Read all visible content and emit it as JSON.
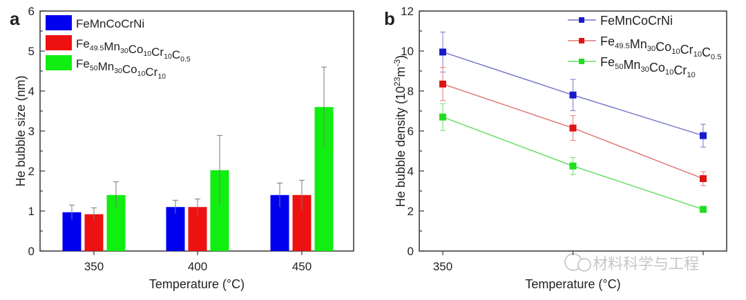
{
  "chart_data": [
    {
      "panel_label": "a",
      "type": "bar",
      "xlabel": "Temperature (°C)",
      "ylabel": "He bubble size (nm)",
      "ylim": [
        0,
        6
      ],
      "yticks": [
        "0",
        "1",
        "2",
        "3",
        "4",
        "5",
        "6"
      ],
      "categories": [
        "350",
        "400",
        "450"
      ],
      "legend_placement": "top-left",
      "series": [
        {
          "name": "FeMnCoCrNi",
          "name_parts": [
            [
              "Fe",
              ""
            ],
            [
              "Mn",
              ""
            ],
            [
              "Co",
              ""
            ],
            [
              "Cr",
              ""
            ],
            [
              "Ni",
              ""
            ]
          ],
          "color": "#0000ee",
          "values": [
            0.97,
            1.1,
            1.4
          ],
          "errors": [
            0.18,
            0.17,
            0.3
          ]
        },
        {
          "name": "Fe49.5Mn30Co10Cr10C0.5",
          "name_parts": [
            [
              "Fe",
              "49.5"
            ],
            [
              "Mn",
              "30"
            ],
            [
              "Co",
              "10"
            ],
            [
              "Cr",
              "10"
            ],
            [
              "C",
              "0.5"
            ]
          ],
          "color": "#ee1111",
          "values": [
            0.92,
            1.1,
            1.4
          ],
          "errors": [
            0.16,
            0.2,
            0.37
          ]
        },
        {
          "name": "Fe50Mn30Co10Cr10",
          "name_parts": [
            [
              "Fe",
              "50"
            ],
            [
              "Mn",
              "30"
            ],
            [
              "Co",
              "10"
            ],
            [
              "Cr",
              "10"
            ]
          ],
          "color": "#11ee11",
          "values": [
            1.4,
            2.02,
            3.6
          ],
          "errors": [
            0.33,
            0.87,
            1.0
          ]
        }
      ]
    },
    {
      "panel_label": "b",
      "type": "line",
      "xlabel": "Temperature (°C)",
      "ylabel": "He bubble density (10",
      "ylabel_sup1": "23",
      "ylabel_mid": "m",
      "ylabel_sup2": "-3",
      "ylabel_end": ")",
      "ylim": [
        0,
        12
      ],
      "yticks": [
        "0",
        "2",
        "4",
        "6",
        "8",
        "10",
        "12"
      ],
      "x": [
        350,
        400,
        450
      ],
      "xtick_labels_visible": [
        "350"
      ],
      "legend_placement": "top-right",
      "series": [
        {
          "name": "FeMnCoCrNi",
          "name_parts": [
            [
              "Fe",
              ""
            ],
            [
              "Mn",
              ""
            ],
            [
              "Co",
              ""
            ],
            [
              "Cr",
              ""
            ],
            [
              "Ni",
              ""
            ]
          ],
          "color": "#1a1acc",
          "line_color": "#7777cc",
          "values": [
            9.95,
            7.8,
            5.77
          ],
          "errors": [
            1.0,
            0.78,
            0.57
          ]
        },
        {
          "name": "Fe49.5Mn30Co10Cr10C0.5",
          "name_parts": [
            [
              "Fe",
              "49.5"
            ],
            [
              "Mn",
              "30"
            ],
            [
              "Co",
              "10"
            ],
            [
              "Cr",
              "10"
            ],
            [
              "C",
              "0.5"
            ]
          ],
          "color": "#dd1515",
          "line_color": "#e07777",
          "values": [
            8.35,
            6.15,
            3.62
          ],
          "errors": [
            0.83,
            0.62,
            0.35
          ]
        },
        {
          "name": "Fe50Mn30Co10Cr10",
          "name_parts": [
            [
              "Fe",
              "50"
            ],
            [
              "Mn",
              "30"
            ],
            [
              "Co",
              "10"
            ],
            [
              "Cr",
              "10"
            ]
          ],
          "color": "#22dd22",
          "line_color": "#66dd66",
          "values": [
            6.7,
            4.25,
            2.08
          ],
          "errors": [
            0.67,
            0.43,
            0.15
          ]
        }
      ]
    }
  ],
  "watermark": "材料科学与工程"
}
